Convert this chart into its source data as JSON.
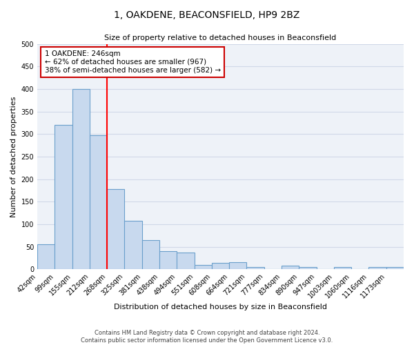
{
  "title": "1, OAKDENE, BEACONSFIELD, HP9 2BZ",
  "subtitle": "Size of property relative to detached houses in Beaconsfield",
  "xlabel": "Distribution of detached houses by size in Beaconsfield",
  "ylabel": "Number of detached properties",
  "footer_line1": "Contains HM Land Registry data © Crown copyright and database right 2024.",
  "footer_line2": "Contains public sector information licensed under the Open Government Licence v3.0.",
  "bin_labels": [
    "42sqm",
    "99sqm",
    "155sqm",
    "212sqm",
    "268sqm",
    "325sqm",
    "381sqm",
    "438sqm",
    "494sqm",
    "551sqm",
    "608sqm",
    "664sqm",
    "721sqm",
    "777sqm",
    "834sqm",
    "890sqm",
    "947sqm",
    "1003sqm",
    "1060sqm",
    "1116sqm",
    "1173sqm"
  ],
  "bar_values": [
    55,
    320,
    400,
    297,
    178,
    108,
    65,
    40,
    38,
    10,
    15,
    16,
    5,
    0,
    8,
    5,
    0,
    5,
    0,
    5,
    5
  ],
  "bar_color": "#c8d9ee",
  "bar_edge_color": "#6a9fcb",
  "grid_color": "#d0d8e8",
  "background_color": "#eef2f8",
  "vline_x": 4,
  "vline_color": "red",
  "ylim": [
    0,
    500
  ],
  "yticks": [
    0,
    50,
    100,
    150,
    200,
    250,
    300,
    350,
    400,
    450,
    500
  ],
  "annotation_title": "1 OAKDENE: 246sqm",
  "annotation_line1": "← 62% of detached houses are smaller (967)",
  "annotation_line2": "38% of semi-detached houses are larger (582) →",
  "annotation_box_edge": "#cc0000",
  "title_fontsize": 10,
  "subtitle_fontsize": 8,
  "ylabel_fontsize": 8,
  "xlabel_fontsize": 8,
  "tick_fontsize": 7,
  "annotation_fontsize": 7.5
}
